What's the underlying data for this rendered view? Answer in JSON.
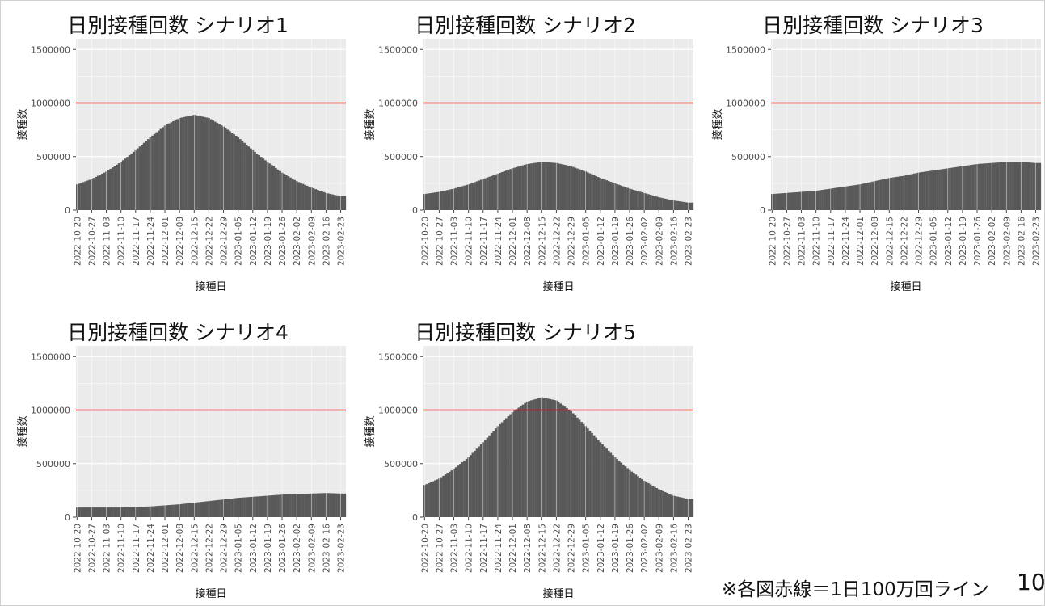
{
  "footnote": "※各図赤線＝1日100万回ライン",
  "page_number": "10",
  "chart_data": [
    {
      "type": "bar",
      "title": "日別接種回数 シナリオ1",
      "xlabel": "接種日",
      "ylabel": "接種数",
      "ylim": [
        0,
        1600000
      ],
      "y_ticks": [
        {
          "value": 0,
          "label": "0"
        },
        {
          "value": 500000,
          "label": "500000"
        },
        {
          "value": 1000000,
          "label": "1000000"
        },
        {
          "value": 1500000,
          "label": "1500000"
        }
      ],
      "x_tick_labels": [
        "2022-10-20",
        "2022-10-27",
        "2022-11-03",
        "2022-11-10",
        "2022-11-17",
        "2022-11-24",
        "2022-12-01",
        "2022-12-08",
        "2022-12-15",
        "2022-12-22",
        "2022-12-29",
        "2023-01-05",
        "2023-01-12",
        "2023-01-19",
        "2023-01-26",
        "2023-02-02",
        "2023-02-09",
        "2023-02-16",
        "2023-02-23"
      ],
      "reference_line": {
        "value": 1000000,
        "color": "#ff0000"
      },
      "bar_color": "#595959",
      "background_color": "#ebebeb",
      "grid": true,
      "dates_sampled": [
        "2022-10-20",
        "2022-10-27",
        "2022-11-03",
        "2022-11-10",
        "2022-11-17",
        "2022-11-24",
        "2022-12-01",
        "2022-12-08",
        "2022-12-15",
        "2022-12-22",
        "2022-12-29",
        "2023-01-05",
        "2023-01-12",
        "2023-01-19",
        "2023-01-26",
        "2023-02-02",
        "2023-02-09",
        "2023-02-16",
        "2023-02-23"
      ],
      "values": [
        240000,
        290000,
        360000,
        450000,
        560000,
        680000,
        790000,
        860000,
        890000,
        860000,
        780000,
        680000,
        560000,
        450000,
        350000,
        270000,
        210000,
        160000,
        130000
      ]
    },
    {
      "type": "bar",
      "title": "日別接種回数 シナリオ2",
      "xlabel": "接種日",
      "ylabel": "接種数",
      "ylim": [
        0,
        1600000
      ],
      "y_ticks": [
        {
          "value": 0,
          "label": "0"
        },
        {
          "value": 500000,
          "label": "500000"
        },
        {
          "value": 1000000,
          "label": "1000000"
        },
        {
          "value": 1500000,
          "label": "1500000"
        }
      ],
      "x_tick_labels": [
        "2022-10-20",
        "2022-10-27",
        "2022-11-03",
        "2022-11-10",
        "2022-11-17",
        "2022-11-24",
        "2022-12-01",
        "2022-12-08",
        "2022-12-15",
        "2022-12-22",
        "2022-12-29",
        "2023-01-05",
        "2023-01-12",
        "2023-01-19",
        "2023-01-26",
        "2023-02-02",
        "2023-02-09",
        "2023-02-16",
        "2023-02-23"
      ],
      "reference_line": {
        "value": 1000000,
        "color": "#ff0000"
      },
      "bar_color": "#595959",
      "background_color": "#ebebeb",
      "grid": true,
      "dates_sampled": [
        "2022-10-20",
        "2022-10-27",
        "2022-11-03",
        "2022-11-10",
        "2022-11-17",
        "2022-11-24",
        "2022-12-01",
        "2022-12-08",
        "2022-12-15",
        "2022-12-22",
        "2022-12-29",
        "2023-01-05",
        "2023-01-12",
        "2023-01-19",
        "2023-01-26",
        "2023-02-02",
        "2023-02-09",
        "2023-02-16",
        "2023-02-23"
      ],
      "values": [
        150000,
        170000,
        200000,
        240000,
        290000,
        340000,
        390000,
        430000,
        450000,
        440000,
        410000,
        360000,
        300000,
        250000,
        200000,
        160000,
        120000,
        90000,
        70000
      ]
    },
    {
      "type": "bar",
      "title": "日別接種回数 シナリオ3",
      "xlabel": "接種日",
      "ylabel": "接種数",
      "ylim": [
        0,
        1600000
      ],
      "y_ticks": [
        {
          "value": 0,
          "label": "0"
        },
        {
          "value": 500000,
          "label": "500000"
        },
        {
          "value": 1000000,
          "label": "1000000"
        },
        {
          "value": 1500000,
          "label": "1500000"
        }
      ],
      "x_tick_labels": [
        "2022-10-20",
        "2022-10-27",
        "2022-11-03",
        "2022-11-10",
        "2022-11-17",
        "2022-11-24",
        "2022-12-01",
        "2022-12-08",
        "2022-12-15",
        "2022-12-22",
        "2022-12-29",
        "2023-01-05",
        "2023-01-12",
        "2023-01-19",
        "2023-01-26",
        "2023-02-02",
        "2023-02-09",
        "2023-02-16",
        "2023-02-23"
      ],
      "reference_line": {
        "value": 1000000,
        "color": "#ff0000"
      },
      "bar_color": "#595959",
      "background_color": "#ebebeb",
      "grid": true,
      "dates_sampled": [
        "2022-10-20",
        "2022-10-27",
        "2022-11-03",
        "2022-11-10",
        "2022-11-17",
        "2022-11-24",
        "2022-12-01",
        "2022-12-08",
        "2022-12-15",
        "2022-12-22",
        "2022-12-29",
        "2023-01-05",
        "2023-01-12",
        "2023-01-19",
        "2023-01-26",
        "2023-02-02",
        "2023-02-09",
        "2023-02-16",
        "2023-02-23"
      ],
      "values": [
        150000,
        160000,
        170000,
        180000,
        200000,
        220000,
        240000,
        270000,
        300000,
        320000,
        350000,
        370000,
        390000,
        410000,
        430000,
        440000,
        450000,
        450000,
        440000
      ]
    },
    {
      "type": "bar",
      "title": "日別接種回数 シナリオ4",
      "xlabel": "接種日",
      "ylabel": "接種数",
      "ylim": [
        0,
        1600000
      ],
      "y_ticks": [
        {
          "value": 0,
          "label": "0"
        },
        {
          "value": 500000,
          "label": "500000"
        },
        {
          "value": 1000000,
          "label": "1000000"
        },
        {
          "value": 1500000,
          "label": "1500000"
        }
      ],
      "x_tick_labels": [
        "2022-10-20",
        "2022-10-27",
        "2022-11-03",
        "2022-11-10",
        "2022-11-17",
        "2022-11-24",
        "2022-12-01",
        "2022-12-08",
        "2022-12-15",
        "2022-12-22",
        "2022-12-29",
        "2023-01-05",
        "2023-01-12",
        "2023-01-19",
        "2023-01-26",
        "2023-02-02",
        "2023-02-09",
        "2023-02-16",
        "2023-02-23"
      ],
      "reference_line": {
        "value": 1000000,
        "color": "#ff0000"
      },
      "bar_color": "#595959",
      "background_color": "#ebebeb",
      "grid": true,
      "dates_sampled": [
        "2022-10-20",
        "2022-10-27",
        "2022-11-03",
        "2022-11-10",
        "2022-11-17",
        "2022-11-24",
        "2022-12-01",
        "2022-12-08",
        "2022-12-15",
        "2022-12-22",
        "2022-12-29",
        "2023-01-05",
        "2023-01-12",
        "2023-01-19",
        "2023-01-26",
        "2023-02-02",
        "2023-02-09",
        "2023-02-16",
        "2023-02-23"
      ],
      "values": [
        90000,
        90000,
        90000,
        90000,
        95000,
        100000,
        110000,
        120000,
        135000,
        150000,
        165000,
        180000,
        190000,
        200000,
        210000,
        215000,
        220000,
        225000,
        220000
      ]
    },
    {
      "type": "bar",
      "title": "日別接種回数 シナリオ5",
      "xlabel": "接種日",
      "ylabel": "接種数",
      "ylim": [
        0,
        1600000
      ],
      "y_ticks": [
        {
          "value": 0,
          "label": "0"
        },
        {
          "value": 500000,
          "label": "500000"
        },
        {
          "value": 1000000,
          "label": "1000000"
        },
        {
          "value": 1500000,
          "label": "1500000"
        }
      ],
      "x_tick_labels": [
        "2022-10-20",
        "2022-10-27",
        "2022-11-03",
        "2022-11-10",
        "2022-11-17",
        "2022-11-24",
        "2022-12-01",
        "2022-12-08",
        "2022-12-15",
        "2022-12-22",
        "2022-12-29",
        "2023-01-05",
        "2023-01-12",
        "2023-01-19",
        "2023-01-26",
        "2023-02-02",
        "2023-02-09",
        "2023-02-16",
        "2023-02-23"
      ],
      "reference_line": {
        "value": 1000000,
        "color": "#ff0000"
      },
      "bar_color": "#595959",
      "background_color": "#ebebeb",
      "grid": true,
      "dates_sampled": [
        "2022-10-20",
        "2022-10-27",
        "2022-11-03",
        "2022-11-10",
        "2022-11-17",
        "2022-11-24",
        "2022-12-01",
        "2022-12-08",
        "2022-12-15",
        "2022-12-22",
        "2022-12-29",
        "2023-01-05",
        "2023-01-12",
        "2023-01-19",
        "2023-01-26",
        "2023-02-02",
        "2023-02-09",
        "2023-02-16",
        "2023-02-23"
      ],
      "values": [
        300000,
        360000,
        450000,
        560000,
        700000,
        850000,
        980000,
        1080000,
        1120000,
        1090000,
        990000,
        850000,
        700000,
        560000,
        440000,
        340000,
        260000,
        200000,
        170000
      ]
    }
  ]
}
